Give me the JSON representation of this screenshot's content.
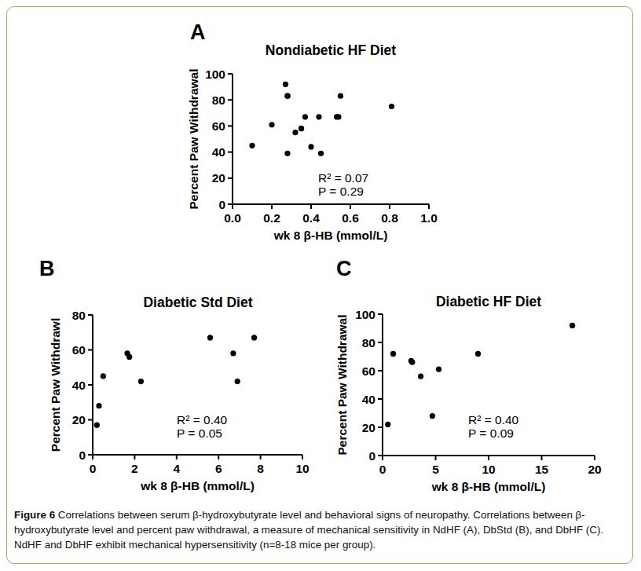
{
  "chart_data": [
    {
      "type": "scatter",
      "panel_label": "A",
      "title": "Nondiabetic HF Diet",
      "x_label": "wk 8 β-HB (mmol/L)",
      "y_label": "Percent Paw Withdrawal",
      "x": [
        0.1,
        0.2,
        0.27,
        0.28,
        0.28,
        0.28,
        0.32,
        0.35,
        0.35,
        0.37,
        0.4,
        0.44,
        0.45,
        0.53,
        0.54,
        0.55,
        0.81
      ],
      "values": [
        45,
        61,
        92,
        83,
        83,
        39,
        55,
        58,
        58,
        67,
        44,
        67,
        39,
        67,
        67,
        83,
        75
      ],
      "xlim": [
        0,
        1
      ],
      "ylim": [
        0,
        100
      ],
      "xticks": [
        {
          "value": 0,
          "label": "0.0"
        },
        0.2,
        0.4,
        0.6,
        0.8,
        {
          "value": 1,
          "label": "1.0"
        }
      ],
      "yticks": [
        0,
        20,
        40,
        60,
        80,
        100
      ],
      "marker": "circle",
      "color": "#000000",
      "grid": false,
      "annotations": [
        "R² = 0.07",
        "P = 0.29"
      ]
    },
    {
      "type": "scatter",
      "panel_label": "B",
      "title": "Diabetic Std Diet",
      "x_label": "wk 8 β-HB (mmol/L)",
      "y_label": "Percent Paw Withdrawl",
      "x": [
        0.2,
        0.3,
        0.5,
        1.65,
        1.75,
        2.3,
        5.6,
        6.7,
        6.9,
        7.7
      ],
      "values": [
        17,
        28,
        45,
        58,
        56,
        42,
        67,
        58,
        42,
        67
      ],
      "xlim": [
        0,
        10
      ],
      "ylim": [
        0,
        80
      ],
      "xticks": [
        0,
        2,
        4,
        6,
        8,
        10
      ],
      "yticks": [
        0,
        20,
        40,
        60,
        80
      ],
      "marker": "circle",
      "color": "#000000",
      "grid": false,
      "annotations": [
        "R² = 0.40",
        "P = 0.05"
      ]
    },
    {
      "type": "scatter",
      "panel_label": "C",
      "title": "Diabetic HF Diet",
      "x_label": "wk 8 β-HB (mmol/L)",
      "y_label": "Percent Paw Withdrawal",
      "x": [
        0.5,
        1.0,
        2.7,
        2.8,
        3.6,
        4.7,
        5.3,
        9.0,
        17.9
      ],
      "values": [
        22,
        72,
        67,
        66,
        56,
        28,
        61,
        72,
        92
      ],
      "xlim": [
        0,
        20
      ],
      "ylim": [
        0,
        100
      ],
      "xticks": [
        0,
        5,
        10,
        15,
        20
      ],
      "yticks": [
        0,
        20,
        40,
        60,
        80,
        100
      ],
      "marker": "circle",
      "color": "#000000",
      "grid": false,
      "annotations": [
        "R² = 0.40",
        "P = 0.09"
      ]
    }
  ],
  "caption": {
    "label": "Figure 6",
    "text": "Correlations between serum β-hydroxybutyrate level and behavioral signs of neuropathy. Correlations between β-hydroxybutyrate level and percent paw withdrawal, a measure of mechanical sensitivity in NdHF (A), DbStd (B), and DbHF (C). NdHF and DbHF exhibit mechanical hypersensitivity (n=8-18 mice per group)."
  }
}
